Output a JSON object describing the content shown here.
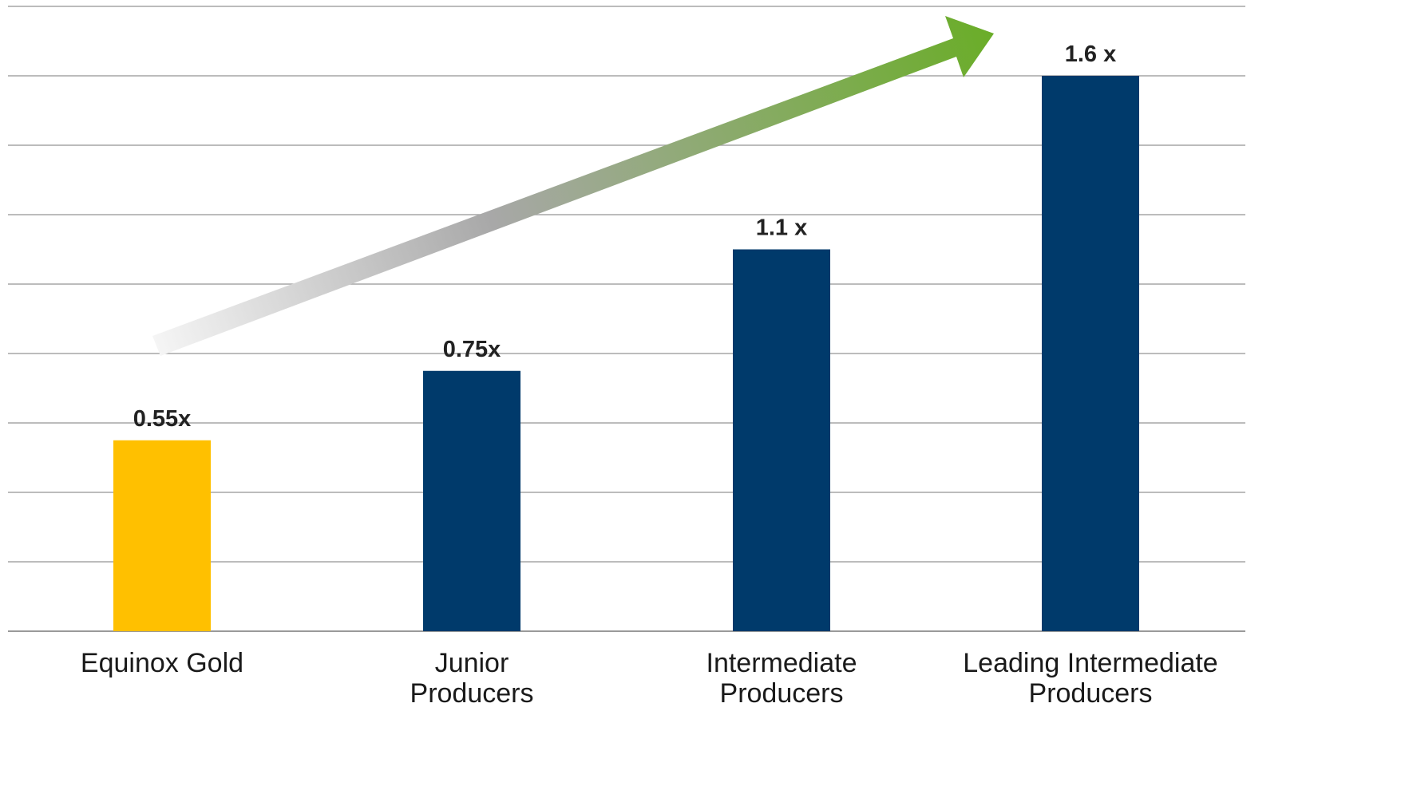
{
  "chart_data": {
    "type": "bar",
    "categories": [
      "Equinox Gold",
      "Junior Producers",
      "Intermediate Producers",
      "Leading Intermediate Producers"
    ],
    "category_lines": [
      [
        "Equinox Gold"
      ],
      [
        "Junior",
        "Producers"
      ],
      [
        "Intermediate",
        "Producers"
      ],
      [
        "Leading Intermediate",
        "Producers"
      ]
    ],
    "values": [
      0.55,
      0.75,
      1.1,
      1.6
    ],
    "data_labels": [
      "0.55x",
      "0.75x",
      "1.1 x",
      "1.6 x"
    ],
    "bar_colors": [
      "#FFC000",
      "#003A6B",
      "#003A6B",
      "#003A6B"
    ],
    "ylim": [
      0,
      1.8
    ],
    "gridline_step": 0.2,
    "grid": true,
    "title": "",
    "xlabel": "",
    "ylabel": "",
    "trend_arrow": {
      "from_category": 0,
      "to_category": 3,
      "start_color": "#f5f5f5",
      "mid_color": "#a8a8a8",
      "end_color": "#6aad28"
    }
  }
}
